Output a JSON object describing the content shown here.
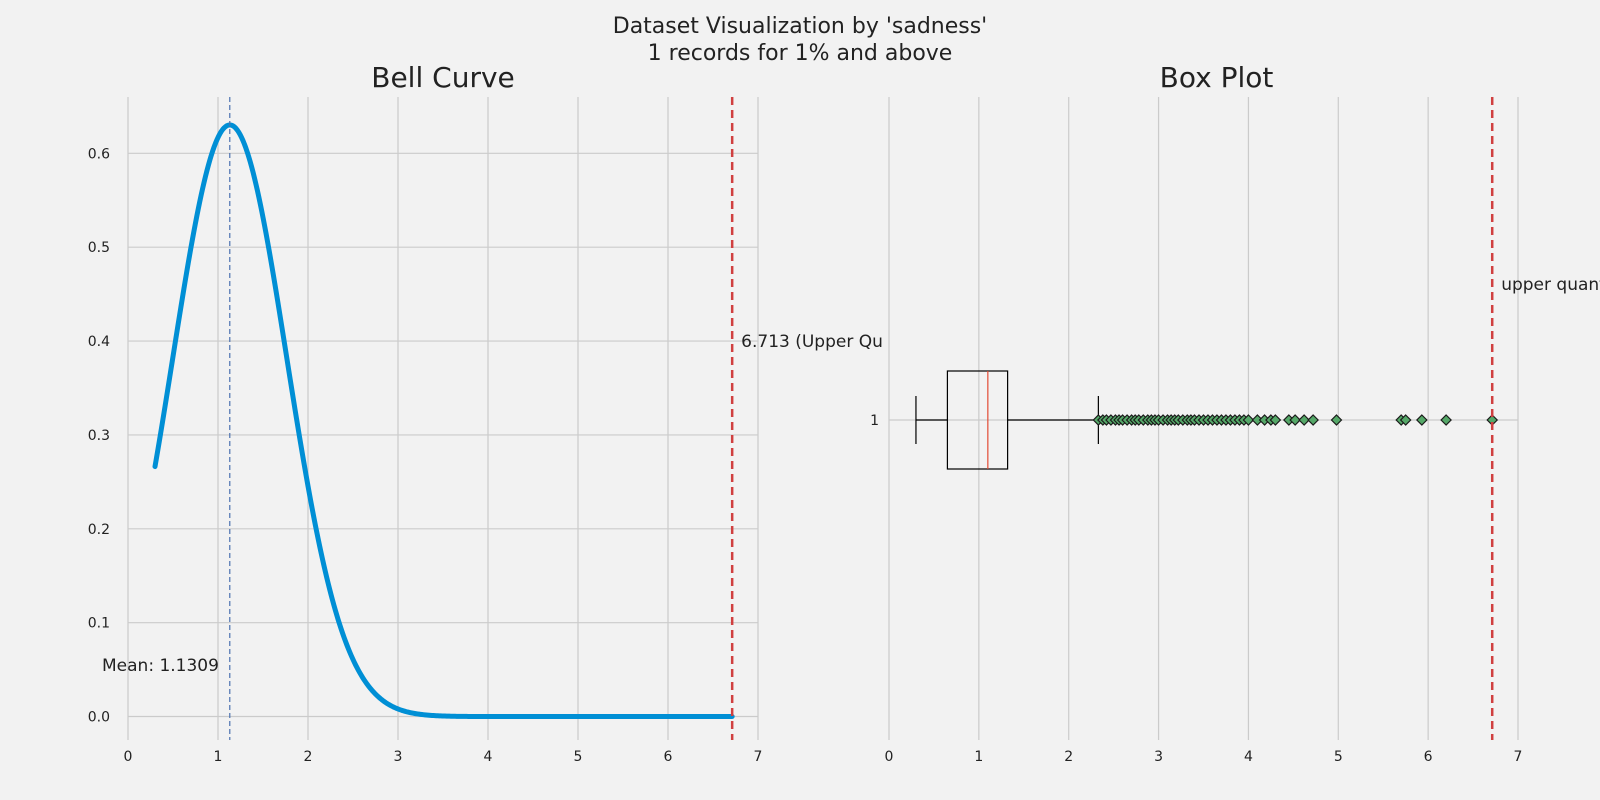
{
  "figure": {
    "title_line1": "Dataset Visualization by 'sadness'",
    "title_line2": "1 records for 1% and above",
    "background": "#f2f2f2"
  },
  "chart_data": [
    {
      "type": "line",
      "title": "Bell Curve",
      "xlabel": "",
      "ylabel": "",
      "xlim": [
        0,
        7
      ],
      "ylim": [
        -0.025,
        0.66
      ],
      "xticks": [
        0,
        1,
        2,
        3,
        4,
        5,
        6,
        7
      ],
      "yticks": [
        0.0,
        0.1,
        0.2,
        0.3,
        0.4,
        0.5,
        0.6
      ],
      "grid": true,
      "curve": {
        "kind": "normal_pdf",
        "mean": 1.1309,
        "std": 0.633,
        "x_start": 0.3,
        "x_end": 6.713,
        "color": "#008fd5"
      },
      "annotations": {
        "mean_value": 1.1309,
        "mean_label": "Mean: 1.1309",
        "mean_label_y": 0.055,
        "mean_color": "#4c72b0",
        "upper_quantile": 6.713,
        "upper_label": "6.713 (Upper Qu",
        "upper_label_y": 0.4,
        "upper_color": "#d04040"
      }
    },
    {
      "type": "box",
      "title": "Box Plot",
      "xlim": [
        0,
        7
      ],
      "xticks": [
        0,
        1,
        2,
        3,
        4,
        5,
        6,
        7
      ],
      "category": "1",
      "grid": true,
      "box": {
        "whisker_low": 0.3,
        "q1": 0.65,
        "median": 1.1,
        "q3": 1.32,
        "whisker_high": 2.33
      },
      "outliers": [
        2.33,
        2.38,
        2.42,
        2.47,
        2.52,
        2.56,
        2.6,
        2.65,
        2.7,
        2.74,
        2.78,
        2.83,
        2.88,
        2.92,
        2.96,
        3.0,
        3.05,
        3.1,
        3.14,
        3.18,
        3.22,
        3.27,
        3.32,
        3.36,
        3.4,
        3.45,
        3.5,
        3.55,
        3.6,
        3.65,
        3.7,
        3.75,
        3.8,
        3.85,
        3.9,
        3.95,
        4.0,
        4.1,
        4.18,
        4.25,
        4.3,
        4.45,
        4.52,
        4.62,
        4.72,
        4.98,
        5.7,
        5.75,
        5.93,
        6.2,
        6.713
      ],
      "median_color": "#e24a33",
      "outlier_color": "#55a868",
      "annotations": {
        "upper_quantile": 6.713,
        "upper_label": "upper quant",
        "upper_color": "#d04040"
      }
    }
  ]
}
